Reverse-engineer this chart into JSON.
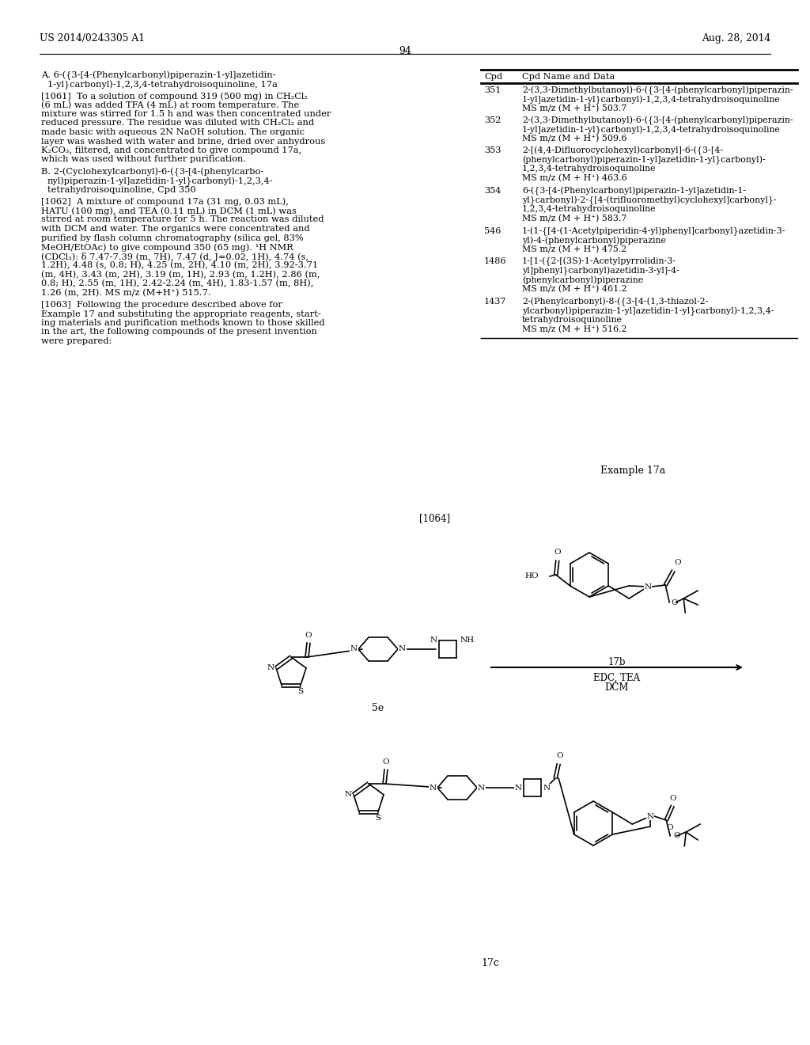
{
  "page_header_left": "US 2014/0243305 A1",
  "page_header_right": "Aug. 28, 2014",
  "page_number": "94",
  "background_color": "#ffffff",
  "table_header_cpd": "Cpd",
  "table_header_data": "Cpd Name and Data",
  "table_rows": [
    {
      "cpd": "351",
      "data": "2-(3,3-Dimethylbutanoyl)-6-({3-[4-(phenylcarbonyl)piperazin-\n1-yl]azetidin-1-yl}carbonyl)-1,2,3,4-tetrahydroisoquinoline\nMS m/z (M + H⁺) 503.7"
    },
    {
      "cpd": "352",
      "data": "2-(3,3-Dimethylbutanoyl)-6-({3-[4-(phenylcarbonyl)piperazin-\n1-yl]azetidin-1-yl}carbonyl)-1,2,3,4-tetrahydroisoquinoline\nMS m/z (M + H⁺) 509.6"
    },
    {
      "cpd": "353",
      "data": "2-[(4,4-Difluorocyclohexyl)carbonyl]-6-({3-[4-\n(phenylcarbonyl)piperazin-1-yl]azetidin-1-yl}carbonyl)-\n1,2,3,4-tetrahydroisoquinoline\nMS m/z (M + H⁺) 463.6"
    },
    {
      "cpd": "354",
      "data": "6-({3-[4-(Phenylcarbonyl)piperazin-1-yl]azetidin-1-\nyl}carbonyl)-2-{[4-(trifluoromethyl)cyclohexyl]carbonyl}-\n1,2,3,4-tetrahydroisoquinoline\nMS m/z (M + H⁺) 583.7"
    },
    {
      "cpd": "546",
      "data": "1-(1-{[4-(1-Acetylpiperidin-4-yl)phenyl]carbonyl}azetidin-3-\nyl)-4-(phenylcarbonyl)piperazine\nMS m/z (M + H⁺) 475.2"
    },
    {
      "cpd": "1486",
      "data": "1-[1-({2-[(3S)-1-Acetylpyrrolidin-3-\nyl]phenyl}carbonyl)azetidin-3-yl]-4-\n(phenylcarbonyl)piperazine\nMS m/z (M + H⁺) 461.2"
    },
    {
      "cpd": "1437",
      "data": "2-(Phenylcarbonyl)-8-({3-[4-(1,3-thiazol-2-\nylcarbonyl)piperazin-1-yl]azetidin-1-yl}carbonyl)-1,2,3,4-\ntetrahydroisoquinoline\nMS m/z (M + H⁺) 516.2"
    }
  ]
}
